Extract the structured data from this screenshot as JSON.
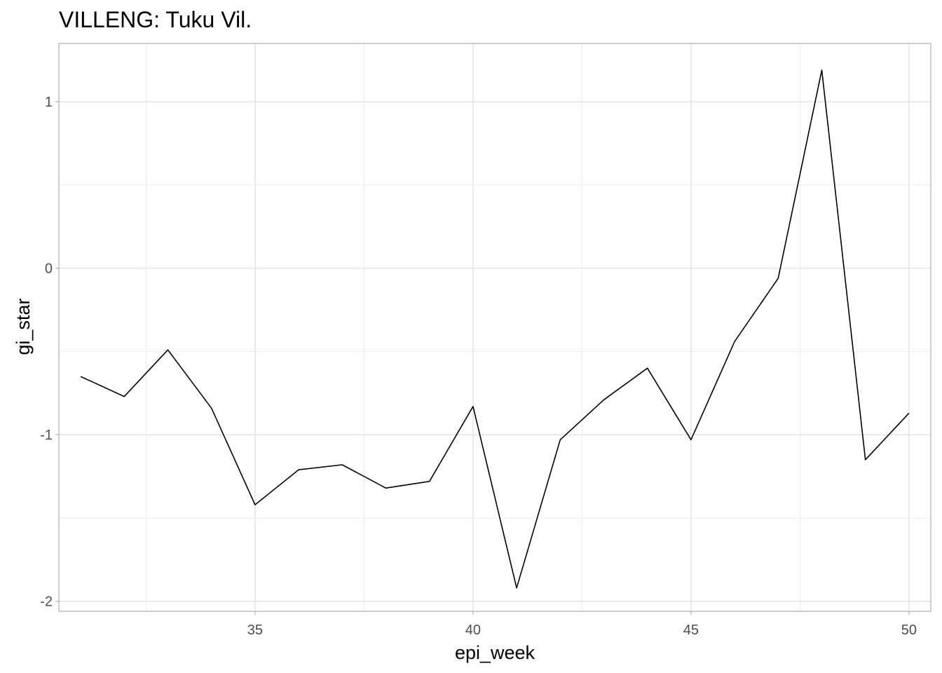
{
  "chart_data": {
    "type": "line",
    "title": "VILLENG: Tuku Vil.",
    "xlabel": "epi_week",
    "ylabel": "gi_star",
    "xlim": [
      30.5,
      50.5
    ],
    "ylim": [
      -2.06,
      1.35
    ],
    "x_ticks": [
      35,
      40,
      45,
      50
    ],
    "x_tick_labels": [
      "35",
      "40",
      "45",
      "50"
    ],
    "y_ticks": [
      1,
      0,
      -1,
      -2
    ],
    "y_tick_labels": [
      "1",
      "0",
      "-1",
      "-2"
    ],
    "grid": true,
    "series": [
      {
        "name": "gi_star",
        "color": "#000000",
        "x": [
          31,
          32,
          33,
          34,
          35,
          36,
          37,
          38,
          39,
          40,
          41,
          42,
          43,
          44,
          45,
          46,
          47,
          48,
          49,
          50
        ],
        "y": [
          -0.65,
          -0.77,
          -0.49,
          -0.84,
          -1.42,
          -1.21,
          -1.18,
          -1.32,
          -1.28,
          -0.83,
          -1.92,
          -1.03,
          -0.79,
          -0.6,
          -1.03,
          -0.44,
          -0.06,
          1.19,
          -1.15,
          -0.87
        ]
      }
    ]
  }
}
